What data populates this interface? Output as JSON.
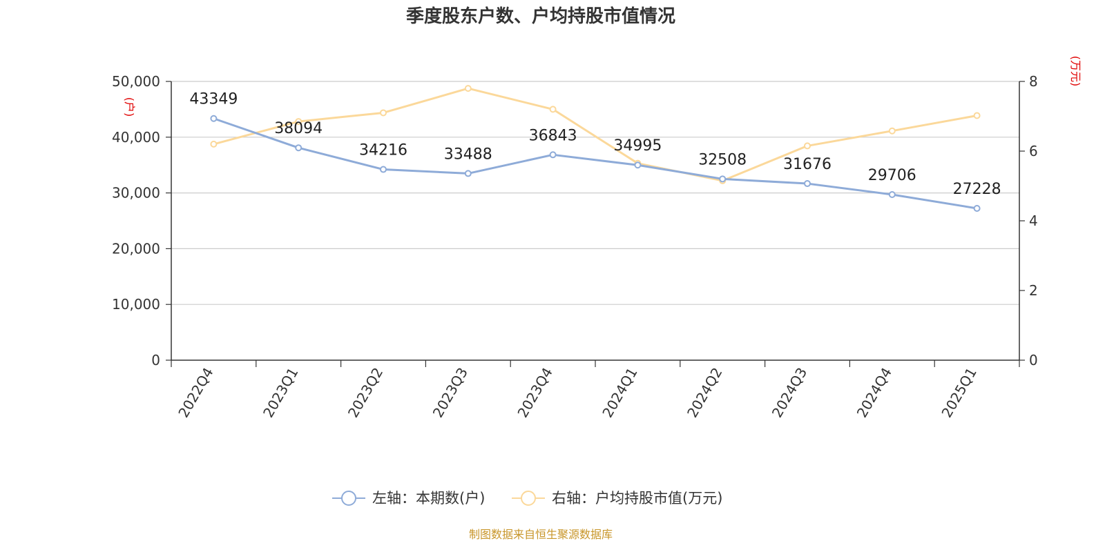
{
  "chart_data": {
    "type": "line",
    "title": "季度股东户数、户均持股市值情况",
    "categories": [
      "2022Q4",
      "2023Q1",
      "2023Q2",
      "2023Q3",
      "2023Q4",
      "2024Q1",
      "2024Q2",
      "2024Q3",
      "2024Q4",
      "2025Q1"
    ],
    "y_left": {
      "unit": "(户)",
      "min": 0,
      "max": 50000,
      "ticks": [
        "0",
        "10,000",
        "20,000",
        "30,000",
        "40,000",
        "50,000"
      ],
      "tick_values": [
        0,
        10000,
        20000,
        30000,
        40000,
        50000
      ]
    },
    "y_right": {
      "unit": "(万元)",
      "min": 0,
      "max": 8,
      "ticks": [
        "0",
        "2",
        "4",
        "6",
        "8"
      ],
      "tick_values": [
        0,
        2,
        4,
        6,
        8
      ]
    },
    "series": [
      {
        "name": "左轴：本期数(户)",
        "axis": "left",
        "color": "#8eabd8",
        "values": [
          43349,
          38094,
          34216,
          33488,
          36843,
          34995,
          32508,
          31676,
          29706,
          27228
        ],
        "labels": [
          "43349",
          "38094",
          "34216",
          "33488",
          "36843",
          "34995",
          "32508",
          "31676",
          "29706",
          "27228"
        ]
      },
      {
        "name": "右轴：户均持股市值(万元)",
        "axis": "right",
        "color": "#fbd89a",
        "values": [
          6.2,
          6.85,
          7.1,
          7.8,
          7.2,
          5.65,
          5.15,
          6.15,
          6.58,
          7.02
        ]
      }
    ],
    "grid": true,
    "legend_position": "bottom-center"
  },
  "footer": {
    "source": "制图数据来自恒生聚源数据库"
  }
}
